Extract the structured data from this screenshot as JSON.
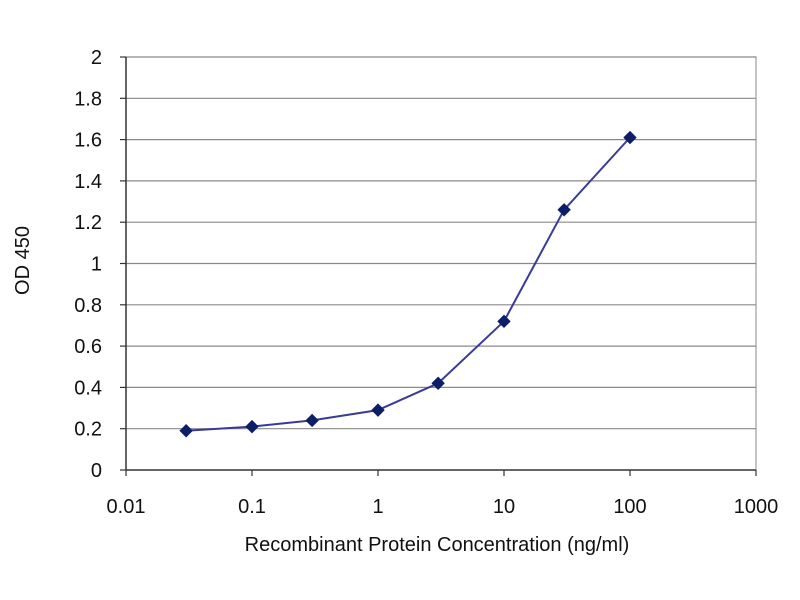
{
  "chart_data": {
    "type": "line",
    "title": "",
    "xlabel": "Recombinant Protein Concentration (ng/ml)",
    "ylabel": "OD 450",
    "x_scale": "log",
    "xlim": [
      0.01,
      1000
    ],
    "ylim": [
      0,
      2
    ],
    "x_ticks": [
      "0.01",
      "0.1",
      "1",
      "10",
      "100",
      "1000"
    ],
    "x_tick_values": [
      0.01,
      0.1,
      1,
      10,
      100,
      1000
    ],
    "y_ticks": [
      "0",
      "0.2",
      "0.4",
      "0.6",
      "0.8",
      "1",
      "1.2",
      "1.4",
      "1.6",
      "1.8",
      "2"
    ],
    "y_tick_values": [
      0,
      0.2,
      0.4,
      0.6,
      0.8,
      1.0,
      1.2,
      1.4,
      1.6,
      1.8,
      2.0
    ],
    "grid": "horizontal",
    "legend": "none",
    "series": [
      {
        "color": "#3a3a99",
        "marker_color": "#0c1f66",
        "marker": "diamond",
        "x": [
          0.03,
          0.1,
          0.3,
          1,
          3,
          10,
          30,
          100
        ],
        "y": [
          0.19,
          0.21,
          0.24,
          0.29,
          0.42,
          0.72,
          1.26,
          1.61
        ]
      }
    ]
  }
}
